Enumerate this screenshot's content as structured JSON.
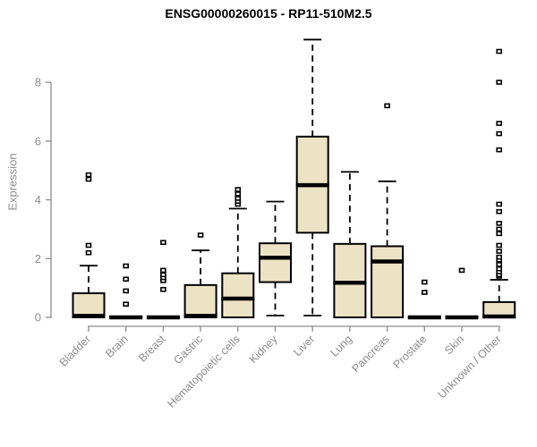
{
  "chart_data": {
    "type": "boxplot",
    "title": "ENSG00000260015 - RP11-510M2.5",
    "ylabel": "Expression",
    "xlabel": "",
    "ylim": [
      0,
      9.7
    ],
    "yticks": [
      0,
      2,
      4,
      6,
      8
    ],
    "grid": false,
    "legend": "none",
    "axis_color": "#8c8c8c",
    "box_fill_color": "#ece3c5",
    "box_stroke_color": "#000000",
    "title_color": "#000000",
    "categories": [
      "Bladder",
      "Brain",
      "Breast",
      "Gastric",
      "Hematopoietic cells",
      "Kidney",
      "Liver",
      "Lung",
      "Pancreas",
      "Prostate",
      "Skin",
      "Unknown / Other"
    ],
    "series": [
      {
        "name": "Bladder",
        "whislo": 0,
        "q1": 0,
        "median": 0.05,
        "q3": 0.82,
        "whishi": 1.76,
        "outliers": [
          2.2,
          2.45,
          4.7,
          4.85
        ]
      },
      {
        "name": "Brain",
        "whislo": 0,
        "q1": 0,
        "median": 0,
        "q3": 0.02,
        "whishi": 0.04,
        "outliers": [
          0.45,
          0.9,
          1.3,
          1.75
        ]
      },
      {
        "name": "Breast",
        "whislo": 0,
        "q1": 0,
        "median": 0,
        "q3": 0.02,
        "whishi": 0.04,
        "outliers": [
          0.95,
          1.25,
          1.35,
          1.45,
          1.6,
          2.55
        ]
      },
      {
        "name": "Gastric",
        "whislo": 0,
        "q1": 0,
        "median": 0.05,
        "q3": 1.1,
        "whishi": 2.28,
        "outliers": [
          2.8
        ]
      },
      {
        "name": "Hematopoietic cells",
        "whislo": 0,
        "q1": 0,
        "median": 0.64,
        "q3": 1.5,
        "whishi": 3.7,
        "outliers": [
          3.85,
          3.95,
          4.05,
          4.2,
          4.35
        ]
      },
      {
        "name": "Kidney",
        "whislo": 0.06,
        "q1": 1.2,
        "median": 2.03,
        "q3": 2.52,
        "whishi": 3.94,
        "outliers": []
      },
      {
        "name": "Liver",
        "whislo": 0.06,
        "q1": 2.88,
        "median": 4.5,
        "q3": 6.15,
        "whishi": 9.45,
        "outliers": []
      },
      {
        "name": "Lung",
        "whislo": 0,
        "q1": 0,
        "median": 1.18,
        "q3": 2.5,
        "whishi": 4.95,
        "outliers": []
      },
      {
        "name": "Pancreas",
        "whislo": 0,
        "q1": 0,
        "median": 1.9,
        "q3": 2.42,
        "whishi": 4.63,
        "outliers": [
          7.2
        ]
      },
      {
        "name": "Prostate",
        "whislo": 0,
        "q1": 0,
        "median": 0,
        "q3": 0.02,
        "whishi": 0.04,
        "outliers": [
          0.85,
          1.2
        ]
      },
      {
        "name": "Skin",
        "whislo": 0,
        "q1": 0,
        "median": 0,
        "q3": 0.02,
        "whishi": 0.04,
        "outliers": [
          1.6
        ]
      },
      {
        "name": "Unknown / Other",
        "whislo": 0,
        "q1": 0,
        "median": 0.03,
        "q3": 0.52,
        "whishi": 1.28,
        "outliers": [
          1.4,
          1.45,
          1.55,
          1.65,
          1.8,
          1.95,
          2.05,
          2.25,
          2.45,
          2.85,
          3.0,
          3.2,
          3.6,
          3.85,
          5.7,
          6.25,
          6.6,
          8.0,
          9.05
        ]
      }
    ]
  }
}
